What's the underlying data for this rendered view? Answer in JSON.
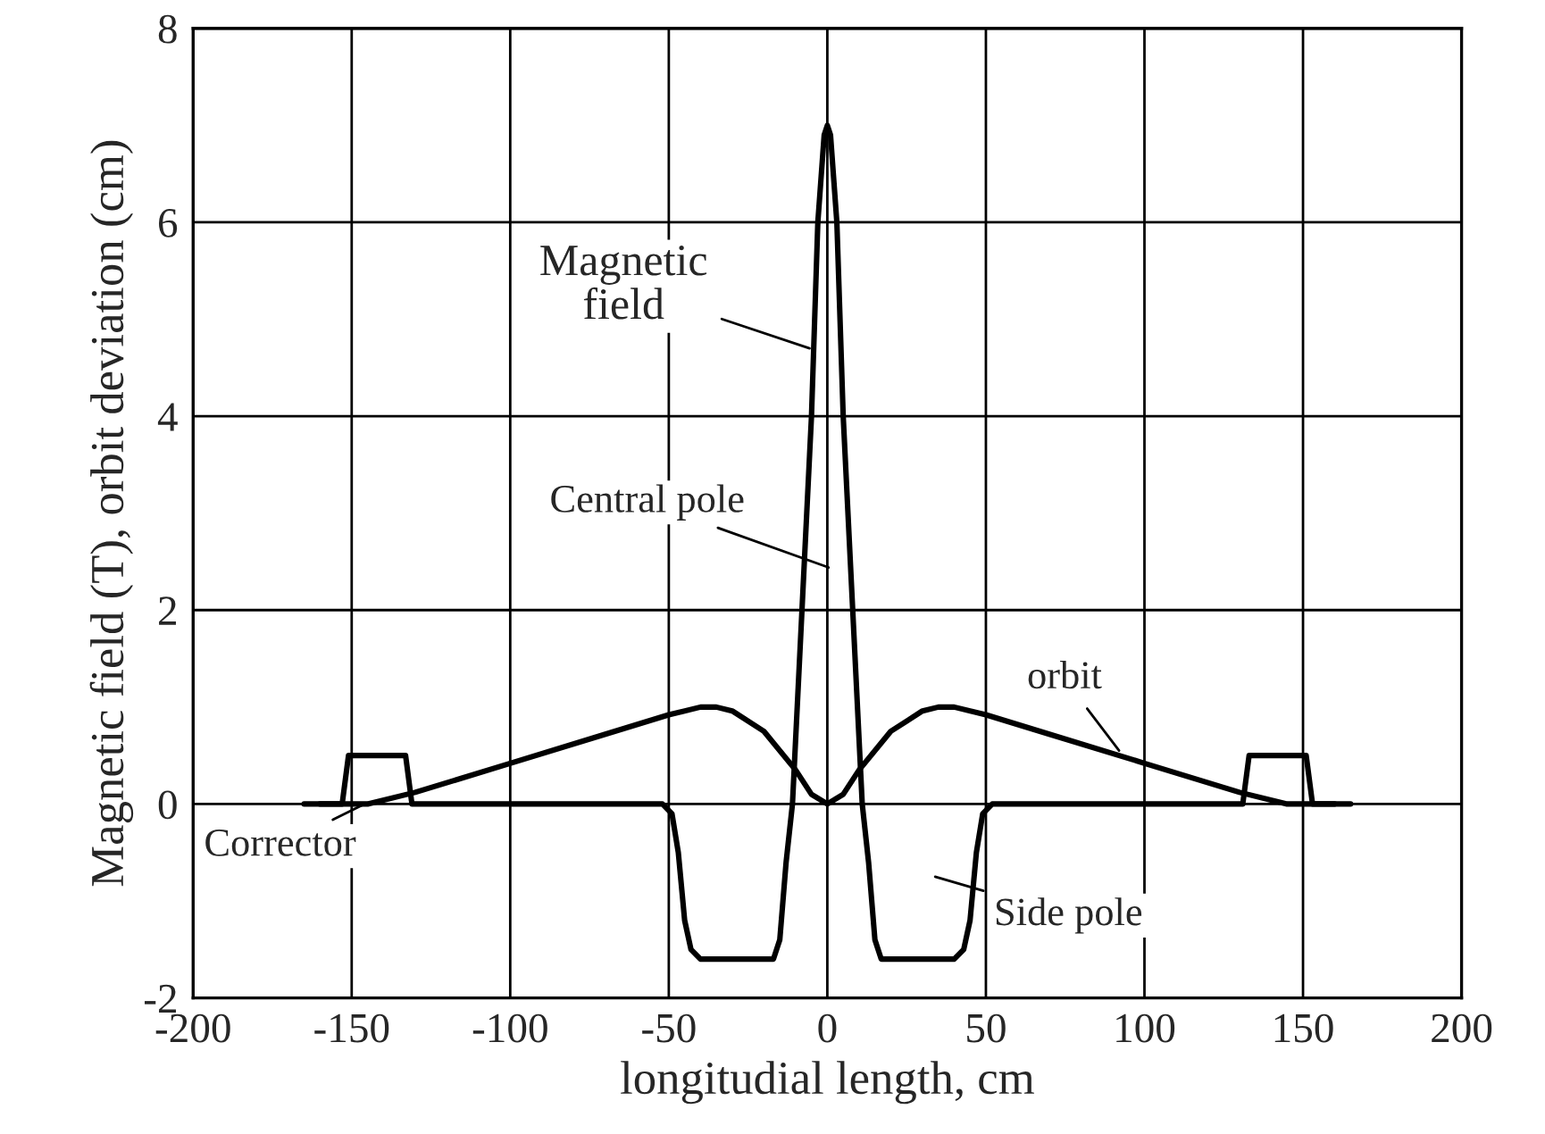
{
  "chart_data": {
    "type": "line",
    "xlabel": "longitudial length, cm",
    "ylabel": "Magnetic field (T), orbit deviation (cm)",
    "series": [
      {
        "color": "#000000",
        "x": [
          -165,
          -153,
          -151,
          -133,
          -131,
          -52,
          -49,
          -47,
          -45,
          -43,
          -40,
          -17,
          -15,
          -13,
          -11,
          -8,
          -5,
          -3,
          -1,
          0,
          1,
          3,
          5,
          8,
          11,
          13,
          15,
          17,
          40,
          43,
          45,
          47,
          49,
          52,
          131,
          133,
          151,
          153,
          165
        ],
        "values": [
          0,
          0,
          0.5,
          0.5,
          0,
          0,
          -0.1,
          -0.5,
          -1.2,
          -1.5,
          -1.6,
          -1.6,
          -1.4,
          -0.6,
          0,
          2,
          4,
          6,
          6.9,
          7,
          6.9,
          6,
          4,
          2,
          0,
          -0.6,
          -1.4,
          -1.6,
          -1.6,
          -1.5,
          -1.2,
          -0.5,
          -0.1,
          0,
          0,
          0.5,
          0.5,
          0,
          0
        ]
      },
      {
        "color": "#000000",
        "x": [
          -160,
          -145,
          -130,
          -100,
          -70,
          -50,
          -40,
          -35,
          -30,
          -20,
          -10,
          -5,
          0,
          5,
          10,
          20,
          30,
          35,
          40,
          50,
          70,
          100,
          130,
          145,
          160
        ],
        "values": [
          0,
          0,
          0.12,
          0.42,
          0.72,
          0.92,
          1.0,
          1.0,
          0.96,
          0.75,
          0.35,
          0.1,
          0,
          0.1,
          0.35,
          0.75,
          0.96,
          1.0,
          1.0,
          0.92,
          0.72,
          0.42,
          0.12,
          0,
          0
        ]
      }
    ],
    "annotations": [
      {
        "text": "Magnetic\nfield",
        "x": -5.6,
        "y": 4.7
      },
      "Central pole",
      {
        "text": "orbit",
        "x": 92,
        "y": 0.55
      },
      {
        "text": "Corrector",
        "x": -146,
        "y": 0
      },
      "Side pole"
    ],
    "xlim": [
      -200,
      200
    ],
    "ylim": [
      -2,
      8
    ],
    "xticks": [
      -200,
      -150,
      -100,
      -50,
      0,
      50,
      100,
      150,
      200
    ],
    "yticks": [
      -2,
      0,
      2,
      4,
      6,
      8
    ],
    "grid": true,
    "legend": false,
    "marker": "none",
    "line_style": "solid"
  }
}
